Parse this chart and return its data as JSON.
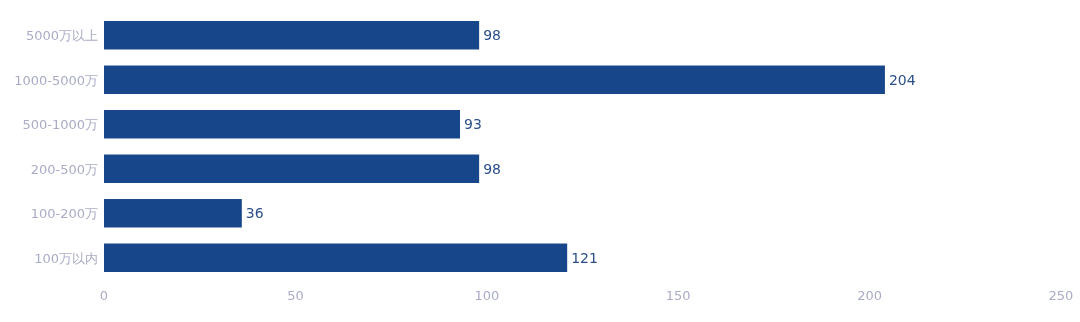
{
  "chart_data": {
    "type": "bar",
    "orientation": "horizontal",
    "categories": [
      "5000万以上",
      "1000-5000万",
      "500-1000万",
      "200-500万",
      "100-200万",
      "100万以内"
    ],
    "values": [
      98,
      204,
      93,
      98,
      36,
      121
    ],
    "color": "#17468a",
    "xlim": [
      0,
      250
    ],
    "xticks": [
      0,
      50,
      100,
      150,
      200,
      250
    ],
    "data_labels": true,
    "grid": false
  }
}
